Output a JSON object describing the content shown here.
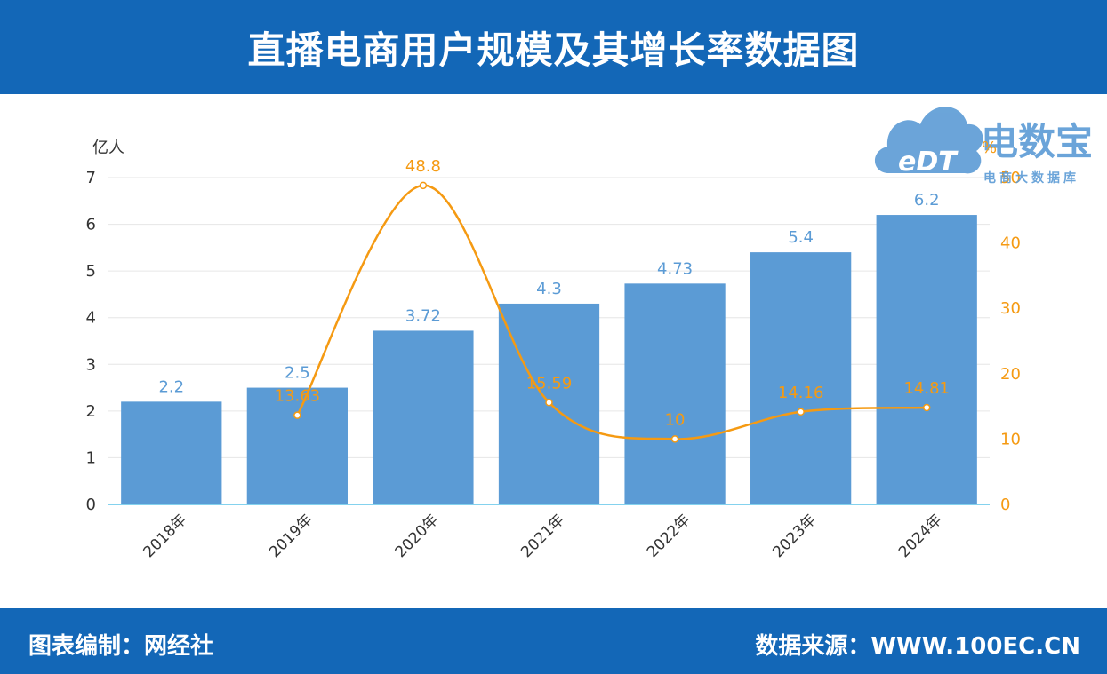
{
  "header": {
    "title": "直播电商用户规模及其增长率数据图"
  },
  "footer": {
    "left": "图表编制：网经社",
    "right": "数据来源：WWW.100EC.CN"
  },
  "logo": {
    "badge": "eDT",
    "name": "电数宝",
    "subtitle": "电商大数据库"
  },
  "colors": {
    "bar": "#5b9bd5",
    "line": "#f59a12",
    "header_bg": "#1367b7",
    "axis_line": "#5bc4e8"
  },
  "chart_data": {
    "type": "bar",
    "categories": [
      "2018年",
      "2019年",
      "2020年",
      "2021年",
      "2022年",
      "2023年",
      "2024年"
    ],
    "series": [
      {
        "name": "",
        "type": "bar",
        "axis": "left",
        "values": [
          2.2,
          2.5,
          3.72,
          4.3,
          4.73,
          5.4,
          6.2
        ]
      },
      {
        "name": "",
        "type": "line",
        "axis": "right",
        "values": [
          null,
          13.63,
          48.8,
          15.59,
          10,
          14.16,
          14.81
        ]
      }
    ],
    "ylabel": "亿人",
    "y2label": "%",
    "ylim": [
      0,
      7
    ],
    "y2lim": [
      0,
      50
    ],
    "yticks": [
      0,
      1,
      2,
      3,
      4,
      5,
      6,
      7
    ],
    "y2ticks": [
      0,
      10,
      20,
      30,
      40,
      50
    ],
    "grid": true,
    "legend": "none",
    "line_smooth": true
  }
}
